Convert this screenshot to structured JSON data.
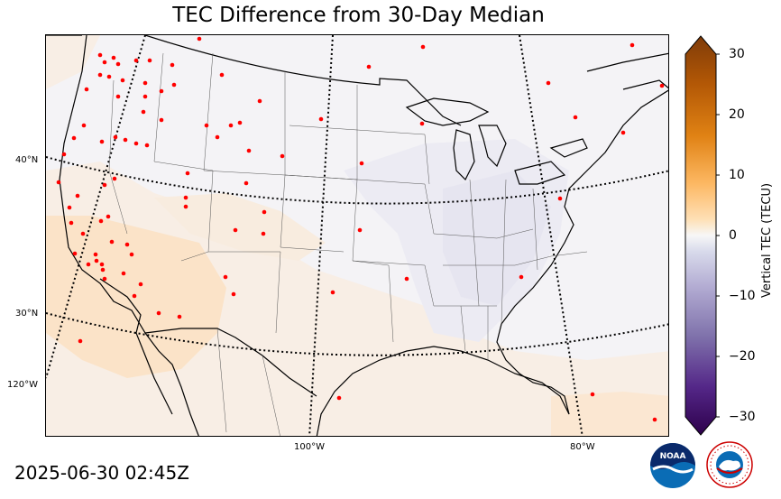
{
  "title": "TEC Difference from 30-Day Median",
  "timestamp": "2025-06-30 02:45Z",
  "colorbar": {
    "label": "Vertical TEC (TECU)",
    "ticks": [
      "30",
      "20",
      "10",
      "0",
      "−10",
      "−20",
      "−30"
    ],
    "range": [
      -30,
      30
    ]
  },
  "lat_labels": [
    "40°N",
    "30°N",
    "120°W"
  ],
  "lon_labels": [
    "100°W",
    "80°W"
  ],
  "logos": {
    "noaa_text": "NOAA",
    "nws_text": "NATIONAL WEATHER SERVICE"
  },
  "colors": {
    "positive_max": "#7f3b08",
    "negative_max": "#2d004b",
    "zero": "#f7f7f7",
    "station": "#ff0000"
  },
  "map": {
    "projection": "conic",
    "region": "Continental United States",
    "features": [
      "coastlines",
      "state borders",
      "country borders",
      "graticule",
      "GNSS stations"
    ]
  }
}
